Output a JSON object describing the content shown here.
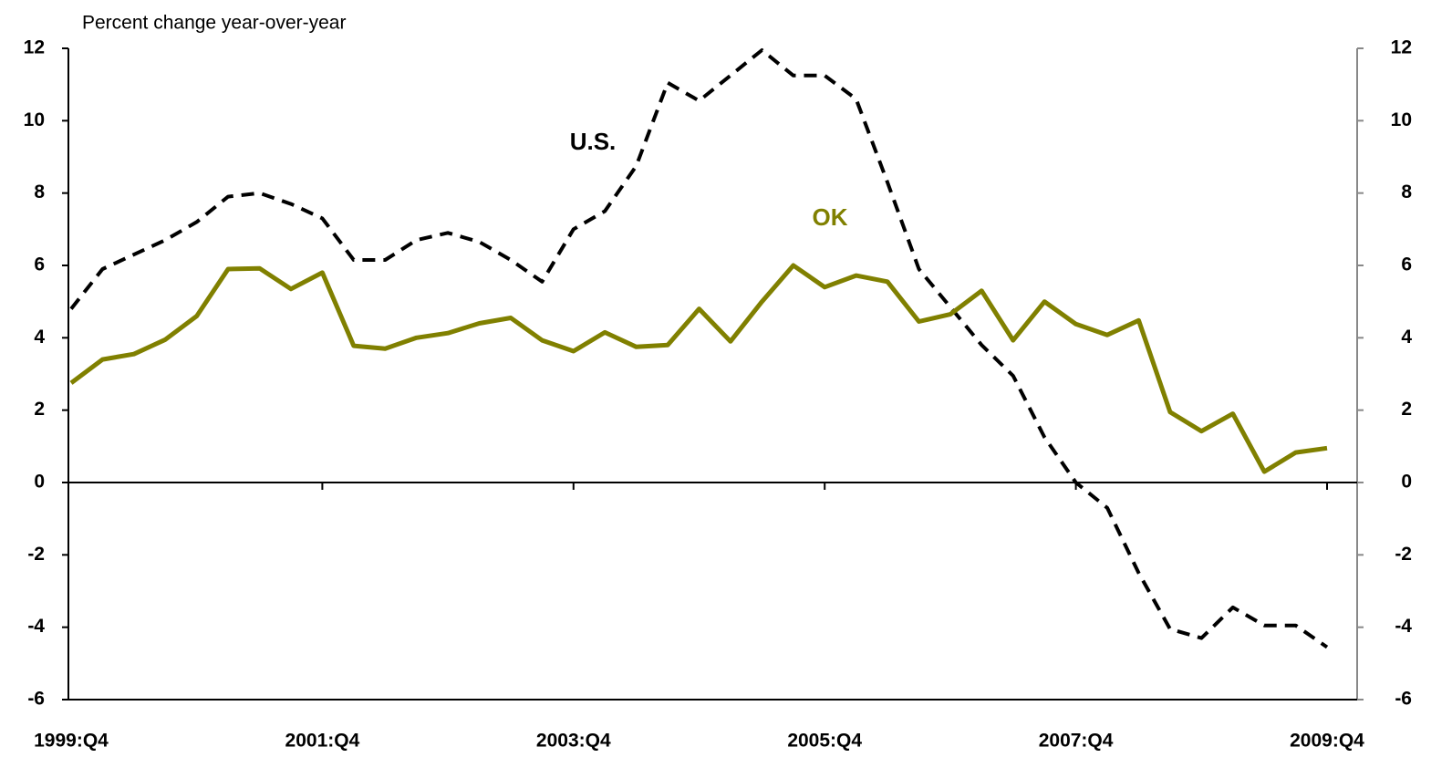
{
  "chart_data": {
    "type": "line",
    "y_axis_label": "Percent change year-over-year",
    "categories": [
      "1999:Q4",
      null,
      null,
      null,
      null,
      null,
      null,
      null,
      "2001:Q4",
      null,
      null,
      null,
      null,
      null,
      null,
      null,
      "2003:Q4",
      null,
      null,
      null,
      null,
      null,
      null,
      null,
      "2005:Q4",
      null,
      null,
      null,
      null,
      null,
      null,
      null,
      "2007:Q4",
      null,
      null,
      null,
      null,
      null,
      null,
      null,
      "2009:Q4"
    ],
    "series": [
      {
        "name": "U.S.",
        "color": "#000000",
        "dashed": true,
        "values": [
          4.8,
          5.9,
          6.3,
          6.7,
          7.2,
          7.9,
          8.0,
          7.7,
          7.3,
          6.15,
          6.15,
          6.7,
          6.9,
          6.65,
          6.15,
          5.55,
          7.0,
          7.5,
          8.75,
          11.05,
          10.55,
          11.25,
          11.95,
          11.25,
          11.25,
          10.6,
          8.3,
          5.9,
          4.85,
          3.8,
          2.95,
          1.25,
          0.0,
          -0.7,
          -2.5,
          -4.05,
          -4.3,
          -3.45,
          -3.95,
          -3.95,
          -4.55
        ]
      },
      {
        "name": "OK",
        "color": "#808000",
        "dashed": false,
        "values": [
          2.75,
          3.4,
          3.55,
          3.95,
          4.6,
          5.9,
          5.92,
          5.35,
          5.8,
          3.78,
          3.7,
          4.0,
          4.13,
          4.4,
          4.55,
          3.93,
          3.63,
          4.15,
          3.75,
          3.8,
          4.8,
          3.9,
          5.0,
          6.0,
          5.4,
          5.72,
          5.55,
          4.45,
          4.65,
          5.3,
          3.93,
          5.0,
          4.38,
          4.08,
          4.48,
          1.95,
          1.42,
          1.9,
          0.3,
          0.83,
          0.95
        ]
      }
    ],
    "ylim": [
      -6,
      12
    ],
    "yticks": [
      -6,
      -4,
      -2,
      0,
      2,
      4,
      6,
      8,
      10,
      12
    ],
    "y2lim": [
      -6,
      12
    ],
    "y2ticks": [
      -6,
      -4,
      -2,
      0,
      2,
      4,
      6,
      8,
      10,
      12
    ],
    "grid": false
  }
}
